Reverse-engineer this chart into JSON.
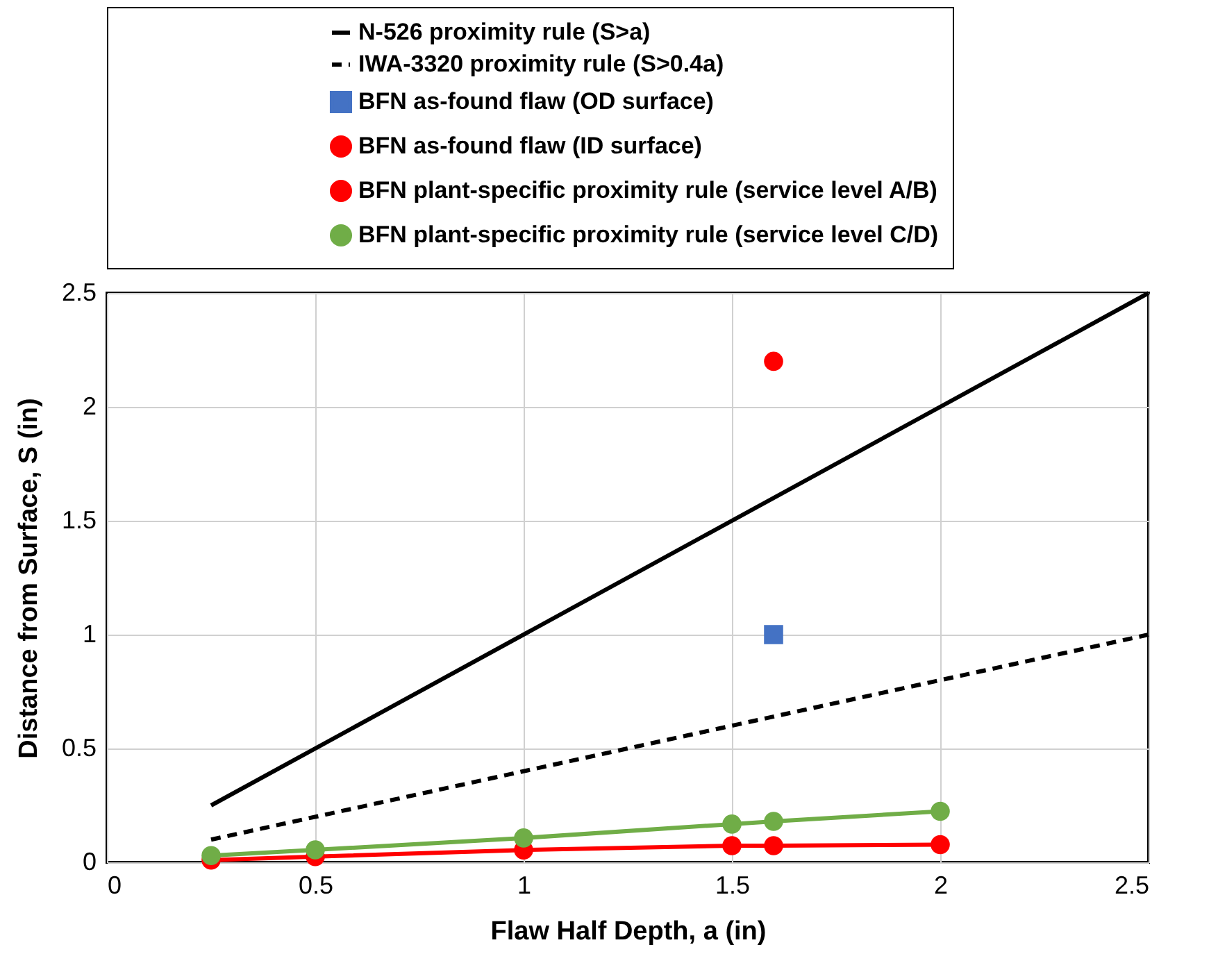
{
  "chart_data": {
    "type": "line",
    "xlabel": "Flaw Half Depth, a (in)",
    "ylabel": "Distance from Surface, S (in)",
    "xlim": [
      0,
      2.5
    ],
    "ylim": [
      0,
      2.5
    ],
    "xticks": [
      0,
      0.5,
      1,
      1.5,
      2,
      2.5
    ],
    "yticks": [
      0,
      0.5,
      1,
      1.5,
      2,
      2.5
    ],
    "grid": true,
    "legend": "top",
    "series": [
      {
        "name": "N-526 proximity rule (S>a)",
        "color": "#000000",
        "line_style": "solid",
        "marker": "none",
        "x": [
          0.25,
          2.5
        ],
        "values": [
          0.25,
          2.5
        ]
      },
      {
        "name": "IWA-3320 proximity rule (S>0.4a)",
        "color": "#000000",
        "line_style": "dashed",
        "marker": "none",
        "x": [
          0.25,
          2.5
        ],
        "values": [
          0.1,
          1.0
        ]
      },
      {
        "name": "BFN as-found flaw (OD surface)",
        "type": "scatter",
        "color": "#4472c4",
        "marker": "square",
        "x": [
          1.6
        ],
        "values": [
          1.0
        ]
      },
      {
        "name": "BFN as-found flaw (ID surface)",
        "type": "scatter",
        "color": "#ff0000",
        "marker": "circle",
        "x": [
          1.6
        ],
        "values": [
          2.2
        ]
      },
      {
        "name": "BFN plant-specific proximity rule (service level A/B)",
        "color": "#ff0000",
        "line_style": "solid",
        "marker": "circle",
        "x": [
          0.25,
          0.5,
          1,
          1.5,
          1.6,
          2
        ],
        "values": [
          0.01,
          0.025,
          0.054,
          0.073,
          0.073,
          0.078
        ]
      },
      {
        "name": "BFN plant-specific proximity rule (service level C/D)",
        "color": "#70ad47",
        "line_style": "solid",
        "marker": "circle",
        "x": [
          0.25,
          0.5,
          1,
          1.5,
          1.6,
          2
        ],
        "values": [
          0.03,
          0.055,
          0.107,
          0.168,
          0.18,
          0.224
        ]
      }
    ]
  }
}
